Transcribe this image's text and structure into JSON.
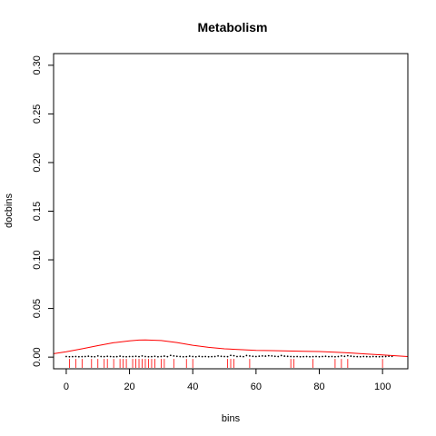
{
  "chart_data": {
    "type": "scatter",
    "title": "Metabolism",
    "xlabel": "bins",
    "ylabel": "docbins",
    "xlim": [
      -4,
      108
    ],
    "ylim": [
      -0.012,
      0.312
    ],
    "x_ticks": [
      0,
      20,
      40,
      60,
      80,
      100
    ],
    "y_ticks": [
      0.0,
      0.05,
      0.1,
      0.15,
      0.2,
      0.25,
      0.3
    ],
    "y_tick_labels": [
      "0.00",
      "0.05",
      "0.10",
      "0.15",
      "0.20",
      "0.25",
      "0.30"
    ],
    "grid": false,
    "series": [
      {
        "type": "scatter",
        "color": "#000000",
        "x": [
          0,
          1,
          2,
          3,
          4,
          5,
          6,
          7,
          8,
          9,
          10,
          11,
          12,
          13,
          14,
          15,
          16,
          17,
          18,
          19,
          20,
          21,
          22,
          23,
          24,
          25,
          26,
          27,
          28,
          29,
          30,
          31,
          32,
          33,
          34,
          35,
          36,
          37,
          38,
          39,
          40,
          41,
          42,
          43,
          44,
          45,
          46,
          47,
          48,
          49,
          50,
          51,
          52,
          53,
          54,
          55,
          56,
          57,
          58,
          59,
          60,
          61,
          62,
          63,
          64,
          65,
          66,
          67,
          68,
          69,
          70,
          71,
          72,
          73,
          74,
          75,
          76,
          77,
          78,
          79,
          80,
          81,
          82,
          83,
          84,
          85,
          86,
          87,
          88,
          89,
          90,
          91,
          92,
          93,
          94,
          95,
          96,
          97,
          98,
          99,
          100,
          101,
          102,
          103
        ],
        "y": [
          0.0006,
          0.0004,
          0.0005,
          0.0006,
          0.0004,
          0.0005,
          0.0006,
          0.0009,
          0.0005,
          0.0004,
          0.0012,
          0.0006,
          0.0005,
          0.0008,
          0.0006,
          0.0004,
          0.0005,
          0.001,
          0.0005,
          0.0004,
          0.0006,
          0.0006,
          0.0008,
          0.0005,
          0.0012,
          0.0006,
          0.0004,
          0.0005,
          0.0008,
          0.0004,
          0.0006,
          0.001,
          0.0005,
          0.0018,
          0.0012,
          0.0008,
          0.0006,
          0.0004,
          0.0005,
          0.001,
          0.0006,
          0.0004,
          0.0008,
          0.0005,
          0.0006,
          0.0004,
          0.0005,
          0.0006,
          0.0012,
          0.0008,
          0.0006,
          0.0005,
          0.0018,
          0.0014,
          0.0006,
          0.0008,
          0.0005,
          0.0016,
          0.0012,
          0.0008,
          0.0006,
          0.0009,
          0.0012,
          0.001,
          0.0014,
          0.0012,
          0.0008,
          0.0006,
          0.0016,
          0.001,
          0.0008,
          0.0006,
          0.0005,
          0.0006,
          0.0004,
          0.0005,
          0.0006,
          0.0004,
          0.0005,
          0.0006,
          0.0004,
          0.0006,
          0.0008,
          0.0005,
          0.0006,
          0.0004,
          0.0006,
          0.0012,
          0.0008,
          0.0014,
          0.001,
          0.0006,
          0.0005,
          0.0004,
          0.0006,
          0.0005,
          0.0004,
          0.0006,
          0.0005,
          0.0004,
          0.0005,
          0.0006,
          0.001,
          0.0008
        ]
      },
      {
        "type": "density",
        "color": "#ff0000",
        "x": [
          -4,
          0,
          5,
          10,
          15,
          20,
          23,
          25,
          30,
          35,
          40,
          45,
          50,
          55,
          60,
          65,
          70,
          75,
          80,
          85,
          90,
          95,
          100,
          105,
          108
        ],
        "y": [
          0.0035,
          0.0055,
          0.0085,
          0.0118,
          0.0148,
          0.0168,
          0.0175,
          0.0176,
          0.017,
          0.015,
          0.0122,
          0.01,
          0.0085,
          0.0077,
          0.007,
          0.0067,
          0.0063,
          0.006,
          0.0057,
          0.005,
          0.0042,
          0.0032,
          0.0022,
          0.0012,
          0.0006
        ]
      },
      {
        "type": "rug",
        "color": "#ff0000",
        "x": [
          1,
          3,
          5,
          8,
          10,
          12,
          13,
          15,
          17,
          18,
          19,
          21,
          22,
          23,
          24,
          25,
          26,
          27,
          28,
          30,
          31,
          34,
          38,
          40,
          51,
          52,
          53,
          58,
          71,
          72,
          78,
          85,
          87,
          89,
          100
        ]
      }
    ]
  }
}
